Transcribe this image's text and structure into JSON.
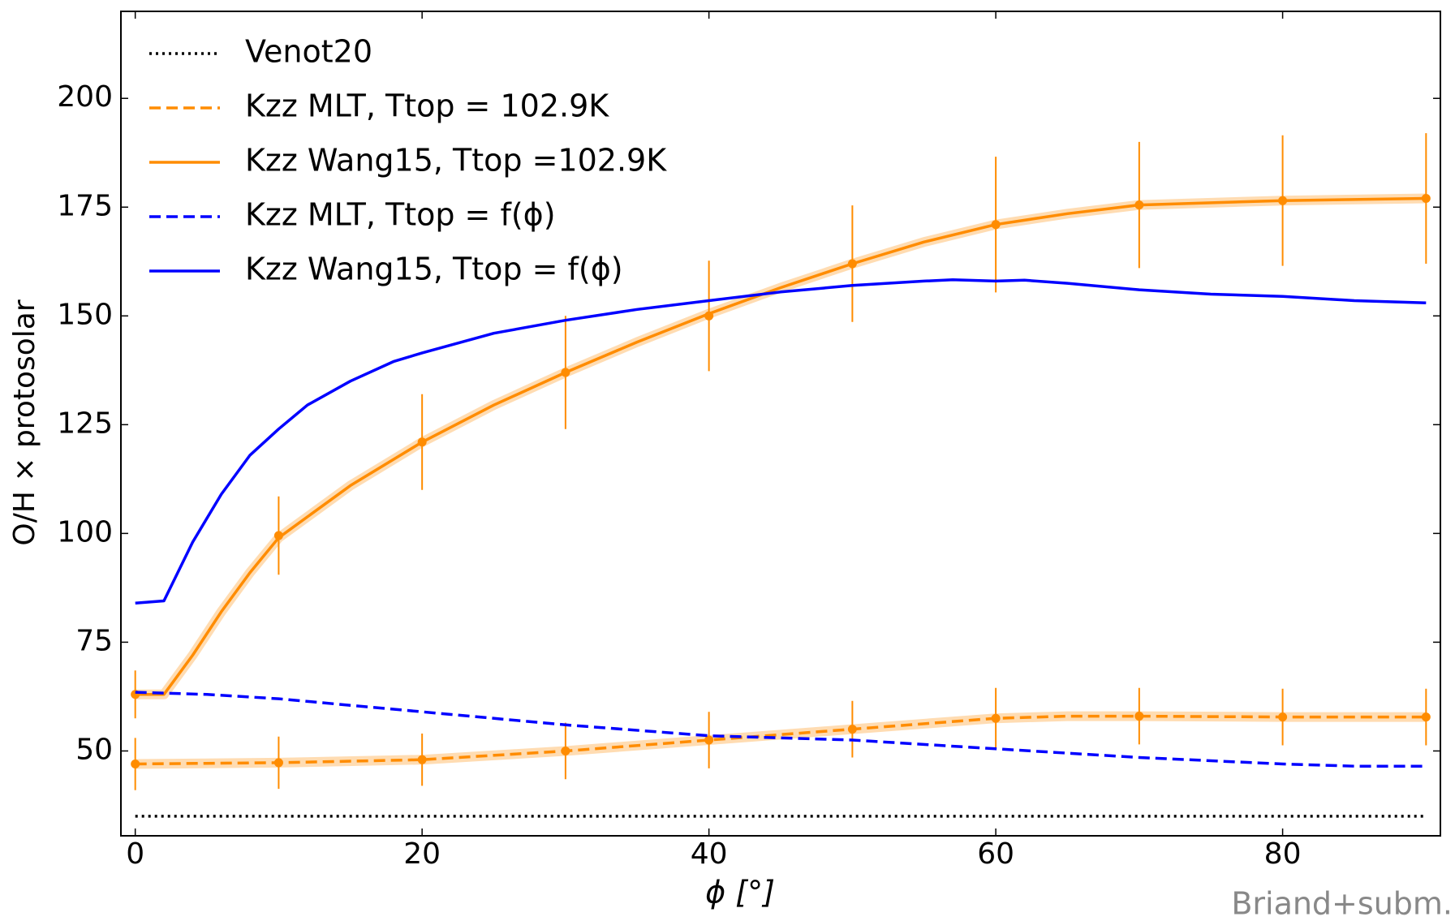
{
  "chart_data": {
    "type": "line",
    "xlabel": "ϕ [°]",
    "ylabel": "O/H × protosolar",
    "credit": "Briand+subm.",
    "xlim": [
      -1,
      91
    ],
    "xticks": [
      0,
      20,
      40,
      60,
      80
    ],
    "ylim": [
      30.5,
      220
    ],
    "yticks": [
      50,
      75,
      100,
      125,
      150,
      175,
      200
    ],
    "legend": "upper left",
    "series": [
      {
        "name": "Venot20",
        "color": "#000000",
        "style": "dotted",
        "x": [
          0,
          90
        ],
        "values": [
          35,
          35
        ]
      },
      {
        "name": "Kzz MLT, Ttop = 102.9K",
        "color": "#ff8c00",
        "style": "dashed",
        "band": true,
        "x": [
          0,
          10,
          20,
          30,
          40,
          50,
          60,
          65,
          70,
          80,
          90
        ],
        "values": [
          47,
          47.3,
          48,
          50,
          52.5,
          55,
          57.5,
          58,
          58,
          57.8,
          57.8
        ],
        "errorbars": {
          "x": [
            0,
            10,
            20,
            30,
            40,
            50,
            60,
            70,
            80,
            90
          ],
          "values": [
            47,
            47.3,
            48,
            50,
            52.5,
            55,
            57.5,
            58,
            57.8,
            57.8
          ],
          "errors": [
            6,
            6,
            6,
            6.5,
            6.5,
            6.5,
            7,
            6.5,
            6.5,
            6.5
          ]
        }
      },
      {
        "name": "Kzz Wang15, Ttop =102.9K",
        "color": "#ff8c00",
        "style": "solid",
        "band": true,
        "x": [
          0,
          2,
          4,
          6,
          8,
          10,
          15,
          20,
          25,
          30,
          35,
          40,
          45,
          50,
          55,
          60,
          65,
          70,
          80,
          90
        ],
        "values": [
          63,
          63,
          72,
          82,
          91,
          99,
          111,
          121,
          129.5,
          137,
          144,
          150.5,
          156.5,
          162,
          167,
          171,
          173.5,
          175.5,
          176.5,
          177
        ],
        "errorbars": {
          "x": [
            0,
            10,
            20,
            30,
            40,
            50,
            60,
            70,
            80,
            90
          ],
          "values": [
            63,
            99.5,
            121,
            137,
            150,
            162,
            171,
            175.5,
            176.5,
            177
          ],
          "errors": [
            5.5,
            9,
            11,
            13,
            12.7,
            13.4,
            15.6,
            14.5,
            15,
            15
          ]
        }
      },
      {
        "name": "Kzz MLT, Ttop = f(ϕ)",
        "color": "#0000ff",
        "style": "dashed",
        "x": [
          0,
          5,
          10,
          15,
          20,
          30,
          40,
          50,
          60,
          70,
          80,
          85,
          90
        ],
        "values": [
          63.5,
          63,
          62,
          60.5,
          59,
          56,
          53.5,
          52.5,
          50.5,
          48.5,
          47,
          46.5,
          46.5
        ]
      },
      {
        "name": "Kzz Wang15, Ttop = f(ϕ)",
        "color": "#0000ff",
        "style": "solid",
        "x": [
          0,
          2,
          4,
          6,
          8,
          10,
          12,
          15,
          18,
          20,
          25,
          30,
          35,
          40,
          45,
          50,
          55,
          57,
          60,
          62,
          65,
          70,
          75,
          80,
          85,
          90
        ],
        "values": [
          84,
          84.5,
          98,
          109,
          118,
          124,
          129.5,
          135,
          139.5,
          141.5,
          146,
          149,
          151.5,
          153.5,
          155.5,
          157,
          158,
          158.3,
          158,
          158.2,
          157.5,
          156,
          155,
          154.5,
          153.5,
          153
        ]
      }
    ]
  }
}
